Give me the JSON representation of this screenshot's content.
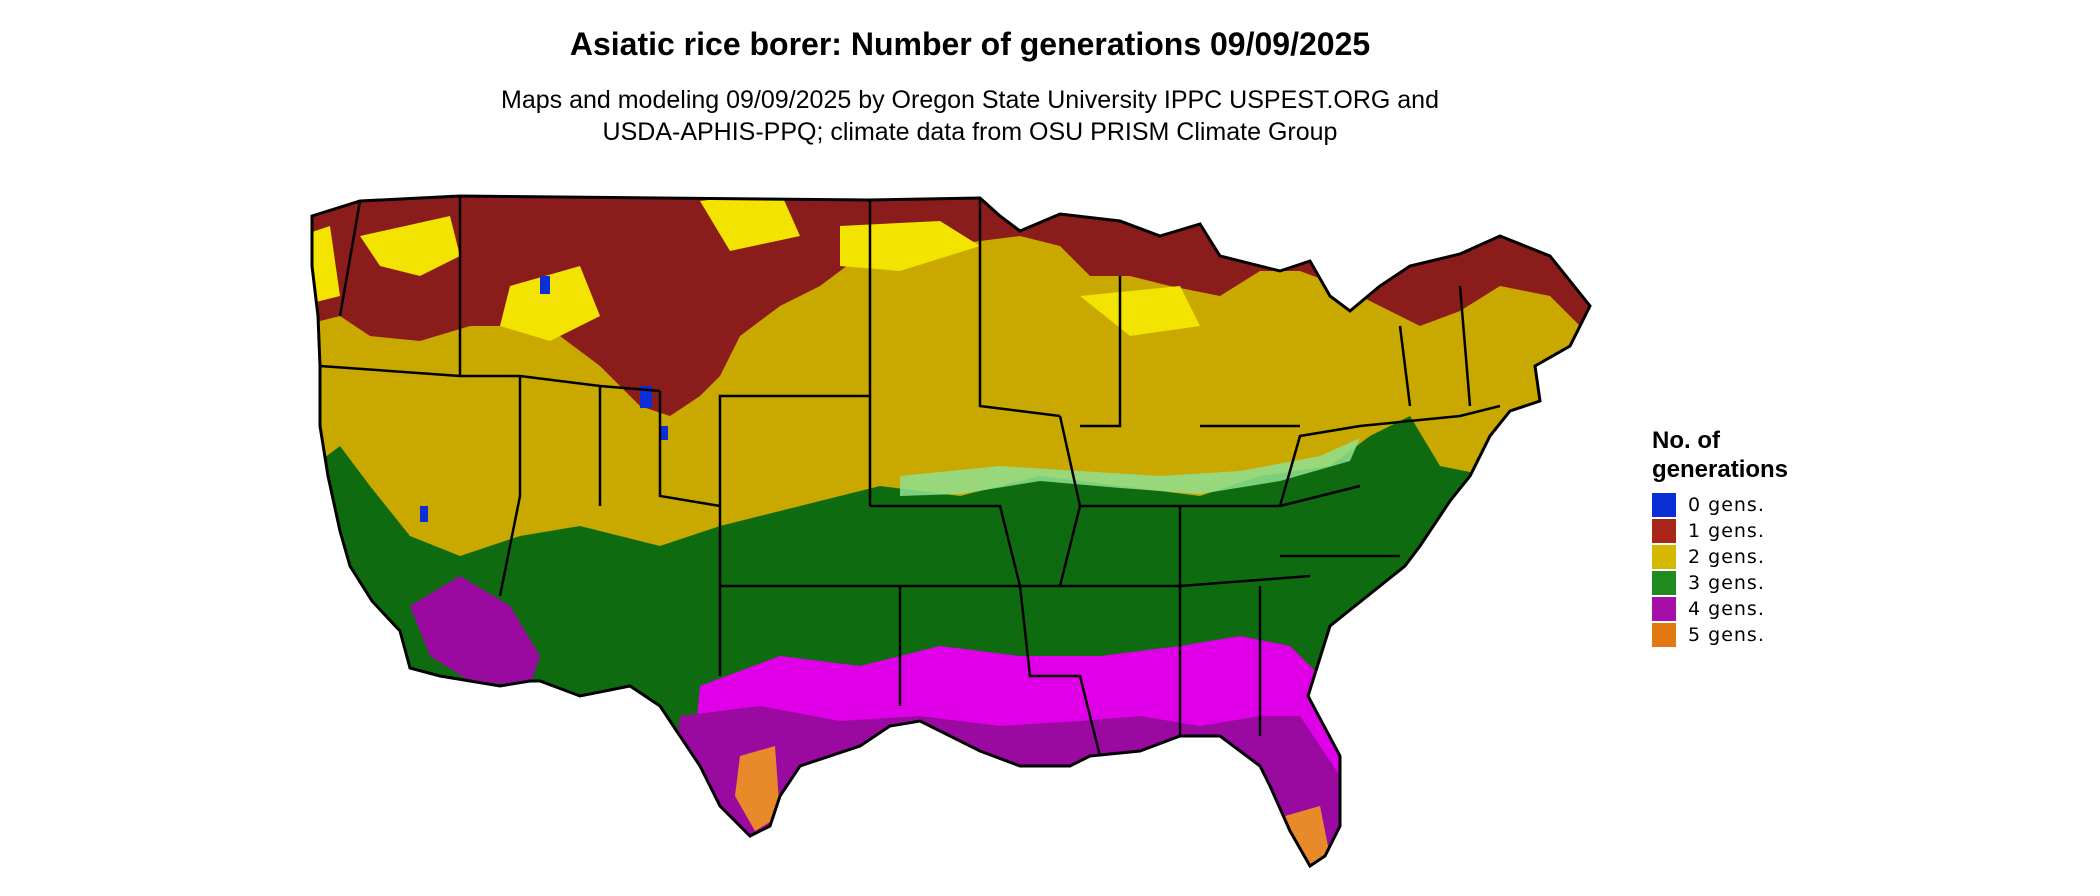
{
  "title": "Asiatic rice borer: Number of generations 09/09/2025",
  "subtitle": {
    "line1": "Maps and modeling 09/09/2025 by Oregon State University IPPC USPEST.ORG and",
    "line2": "USDA-APHIS-PPQ; climate data from OSU PRISM Climate Group"
  },
  "legend": {
    "title_line1": "No. of",
    "title_line2": "generations",
    "items": [
      {
        "label": "0 gens.",
        "color": "#0a2fd6"
      },
      {
        "label": "1 gens.",
        "color": "#a8251a"
      },
      {
        "label": "2 gens.",
        "color": "#d6b800"
      },
      {
        "label": "3 gens.",
        "color": "#1f8a1f"
      },
      {
        "label": "4 gens.",
        "color": "#a50fa8"
      },
      {
        "label": "5 gens.",
        "color": "#e07a10"
      }
    ]
  },
  "map_colors": {
    "gens0": "#0a2fd6",
    "gens1": "#8b1c1c",
    "gens2": "#c9a800",
    "gens2_bright": "#f2e400",
    "gens3": "#0f6b0f",
    "gens3_light": "#8fe08f",
    "gens4": "#9b0aa0",
    "gens4_bright": "#e000e8",
    "gens5": "#e88a2a",
    "border": "#000000"
  }
}
